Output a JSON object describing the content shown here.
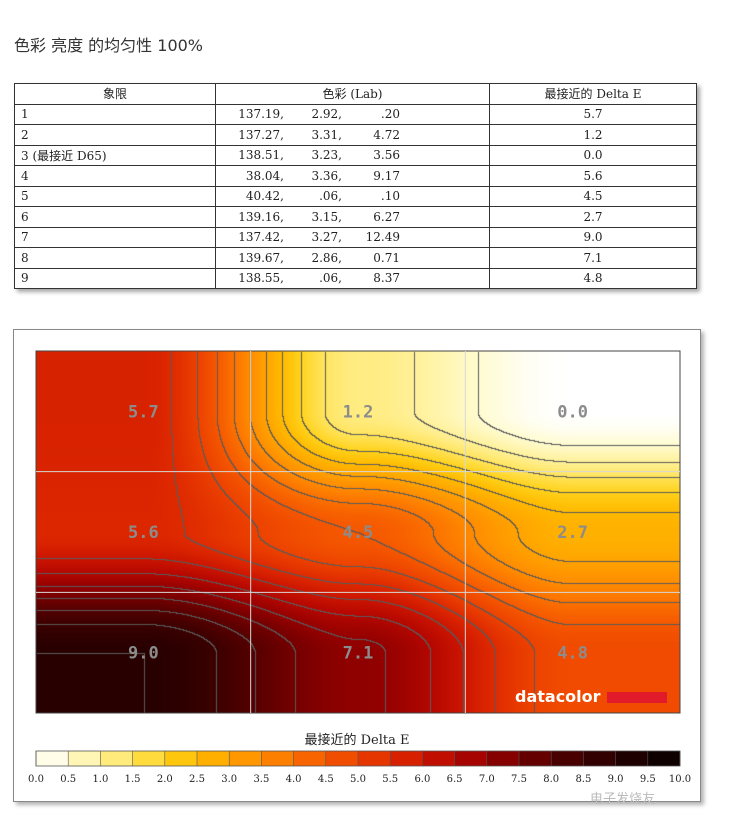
{
  "page": {
    "title": "色彩 亮度 的均匀性 100%",
    "watermark": "电子发烧友"
  },
  "table": {
    "headers": [
      "象限",
      "色彩 (Lab)",
      "最接近的 Delta E"
    ],
    "rows": [
      {
        "quadrant": "1",
        "L": "137.19,",
        "a": "2.92,",
        "b": ".20",
        "de": "5.7"
      },
      {
        "quadrant": "2",
        "L": "137.27,",
        "a": "3.31,",
        "b": "4.72",
        "de": "1.2"
      },
      {
        "quadrant": "3 (最接近 D65)",
        "L": "138.51,",
        "a": "3.23,",
        "b": "3.56",
        "de": "0.0"
      },
      {
        "quadrant": "4",
        "L": "38.04,",
        "a": "3.36,",
        "b": "9.17",
        "de": "5.6"
      },
      {
        "quadrant": "5",
        "L": "40.42,",
        "a": ".06,",
        "b": ".10",
        "de": "4.5"
      },
      {
        "quadrant": "6",
        "L": "139.16,",
        "a": "3.15,",
        "b": "6.27",
        "de": "2.7"
      },
      {
        "quadrant": "7",
        "L": "137.42,",
        "a": "3.27,",
        "b": "12.49",
        "de": "9.0"
      },
      {
        "quadrant": "8",
        "L": "139.67,",
        "a": "2.86,",
        "b": "0.71",
        "de": "7.1"
      },
      {
        "quadrant": "9",
        "L": "138.55,",
        "a": ".06,",
        "b": "8.37",
        "de": "4.8"
      }
    ]
  },
  "chart_data": {
    "type": "heatmap",
    "rows": 3,
    "cols": 3,
    "values": [
      [
        5.7,
        1.2,
        0.0
      ],
      [
        5.6,
        4.5,
        2.7
      ],
      [
        9.0,
        7.1,
        4.8
      ]
    ],
    "labels": [
      [
        "5.7",
        "1.2",
        "0.0"
      ],
      [
        "5.6",
        "4.5",
        "2.7"
      ],
      [
        "9.0",
        "7.1",
        "4.8"
      ]
    ],
    "colorbar_title": "最接近的 Delta E",
    "colorbar_range": [
      0,
      10
    ],
    "colorbar_ticks": [
      "0.0",
      "0.5",
      "1.0",
      "1.5",
      "2.0",
      "2.5",
      "3.0",
      "3.5",
      "4.0",
      "4.5",
      "5.0",
      "5.5",
      "6.0",
      "6.5",
      "7.0",
      "7.5",
      "8.0",
      "8.5",
      "9.0",
      "9.5",
      "10.0"
    ],
    "logo": "datacolor",
    "colors": {
      "stops": [
        "#ffffff",
        "#fffbd0",
        "#fff19a",
        "#ffe45d",
        "#ffd21c",
        "#ffba00",
        "#ffa300",
        "#ff8c00",
        "#fb7200",
        "#f55800",
        "#ec4200",
        "#df2a00",
        "#cc1500",
        "#b40700",
        "#950100",
        "#740000",
        "#560000",
        "#3c0000",
        "#280000",
        "#160000",
        "#080000"
      ],
      "logo_bar": "#e21b2a",
      "grid": "#d8d8d8",
      "contour": "#5a5a5a",
      "label": "#8c8c8c"
    }
  }
}
